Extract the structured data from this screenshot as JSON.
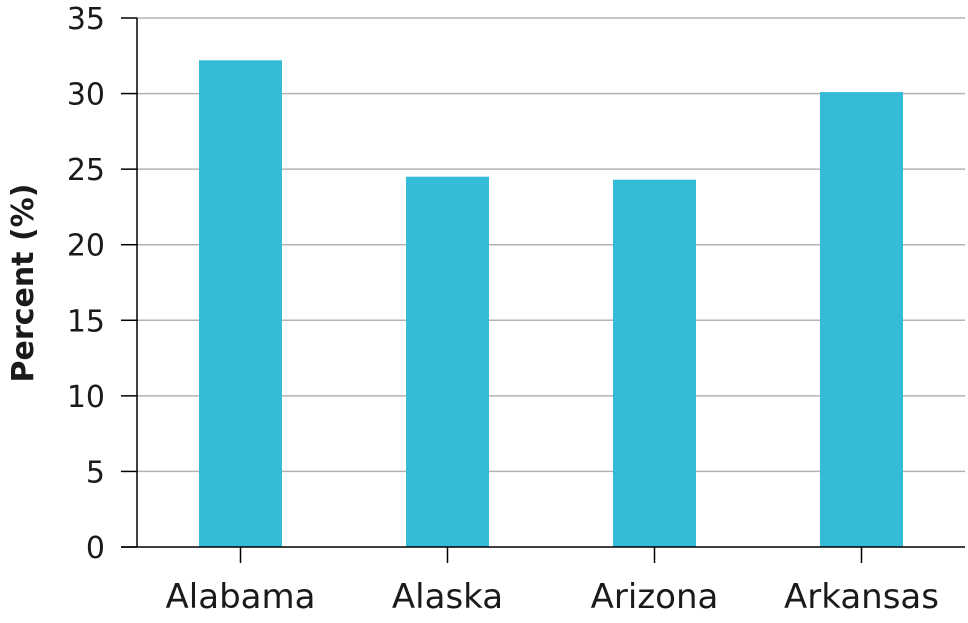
{
  "chart_data": {
    "type": "bar",
    "title": "",
    "xlabel": "",
    "ylabel": "Percent (%)",
    "categories": [
      "Alabama",
      "Alaska",
      "Arizona",
      "Arkansas"
    ],
    "values": [
      32.2,
      24.5,
      24.3,
      30.1
    ],
    "ylim": [
      0,
      35
    ],
    "yticks": [
      0,
      5,
      10,
      15,
      20,
      25,
      30,
      35
    ],
    "grid": true,
    "bar_color": "#33bbd8",
    "grid_color": "#b3b3b3",
    "axis_color": "#000000"
  }
}
